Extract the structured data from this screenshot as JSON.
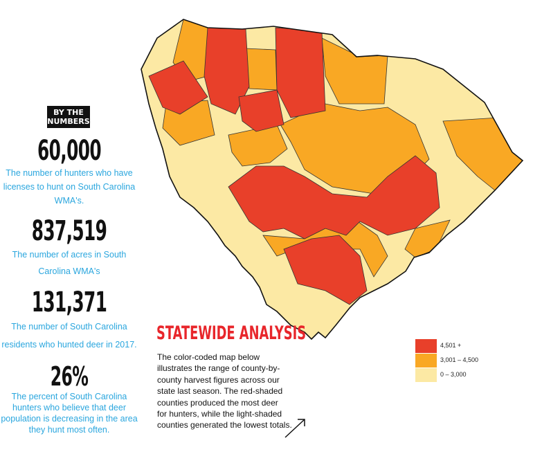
{
  "stats": {
    "badge_line1": "BY THE",
    "badge_line2": "NUMBERS",
    "items": [
      {
        "value": "60,000",
        "line1": "The number of hunters who have",
        "line2": "licenses to hunt on South Carolina",
        "line3": "WMA's."
      },
      {
        "value": "837,519",
        "line1": "The number of acres in South",
        "line2": "Carolina WMA's"
      },
      {
        "value": "131,371",
        "line1": "The number of South Carolina",
        "line2": "residents who hunted deer in 2017."
      },
      {
        "value": "26%",
        "line1": "The percent of South Carolina",
        "line2": "hunters who believe that deer",
        "line3": "population is decreasing in the area",
        "line4": "they hunt most often."
      }
    ]
  },
  "analysis": {
    "title": "STATEWIDE ANALYSIS",
    "line1": "The color-coded map below",
    "line2": "illustrates the range of county-by-",
    "line3": "county harvest figures across our",
    "line4": "state last season. The red-shaded",
    "line5": "counties produced the most deer",
    "line6": "for hunters, while the light-shaded",
    "line7": "counties generated the lowest totals."
  },
  "legend": [
    {
      "label": "4,501 +",
      "color": "#e8402a"
    },
    {
      "label": "3,001 – 4,500",
      "color": "#f9a824"
    },
    {
      "label": "0 – 3,000",
      "color": "#fce9a4"
    }
  ],
  "colors": {
    "high": "#e8402a",
    "mid": "#f9a824",
    "low": "#fce9a4",
    "accent_text": "#2aa6de",
    "title": "#e8262b"
  }
}
